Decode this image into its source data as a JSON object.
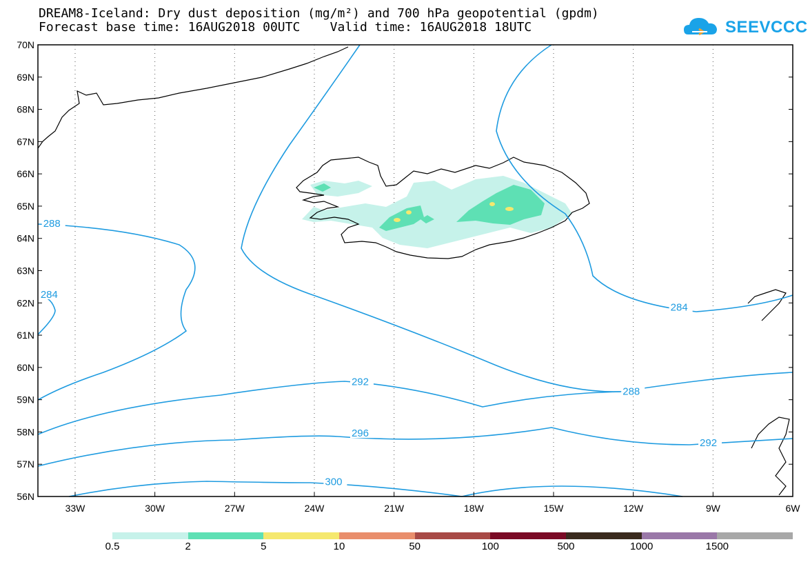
{
  "title": {
    "line1": "DREAM8-Iceland: Dry dust deposition (mg/m²) and 700 hPa geopotential (gpdm)",
    "line2": "Forecast base time: 16AUG2018 00UTC    Valid time: 16AUG2018 18UTC"
  },
  "logo": {
    "text": "SEEVCCC",
    "color": "#1aa3e8",
    "icon": "cloud-icon"
  },
  "axes": {
    "lat_labels": [
      "70N",
      "69N",
      "68N",
      "67N",
      "66N",
      "65N",
      "64N",
      "63N",
      "62N",
      "61N",
      "60N",
      "59N",
      "58N",
      "57N",
      "56N"
    ],
    "lon_labels": [
      "33W",
      "30W",
      "27W",
      "24W",
      "21W",
      "18W",
      "15W",
      "12W",
      "9W",
      "6W"
    ],
    "lat_range": [
      56,
      70
    ],
    "lon_range": [
      -34.4,
      -6
    ],
    "grid": "dotted"
  },
  "contour_labels": [
    {
      "text": "288",
      "lon": -34.2,
      "lat": 64.4
    },
    {
      "text": "284",
      "lon": -34.3,
      "lat": 62.2
    },
    {
      "text": "284",
      "lon": -10.6,
      "lat": 61.8
    },
    {
      "text": "292",
      "lon": -22.6,
      "lat": 59.5
    },
    {
      "text": "288",
      "lon": -12.4,
      "lat": 59.2
    },
    {
      "text": "296",
      "lon": -22.6,
      "lat": 57.9
    },
    {
      "text": "292",
      "lon": -9.5,
      "lat": 57.6
    },
    {
      "text": "300",
      "lon": -23.6,
      "lat": 56.4
    }
  ],
  "contour_color": "#1e9be0",
  "legend": {
    "colors": [
      "#c6f2ea",
      "#5ee0b4",
      "#f5e86e",
      "#e98e6c",
      "#a84a46",
      "#7a0a25",
      "#3a2a1e",
      "#9a78a8",
      "#a8a8a8"
    ],
    "labels": [
      "0.5",
      "2",
      "5",
      "10",
      "50",
      "100",
      "500",
      "1000",
      "1500"
    ]
  }
}
